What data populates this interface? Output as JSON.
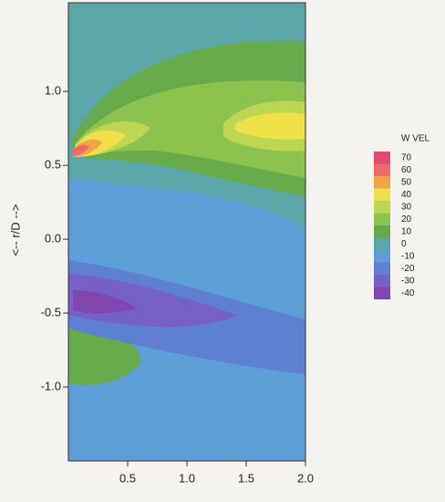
{
  "chart_data": {
    "type": "contour",
    "ylabel": "<-- r/D -->",
    "xlim": [
      0,
      2
    ],
    "ylim": [
      -1.5,
      1.6
    ],
    "xticks": [
      0.5,
      {
        "value": 1,
        "label": "1.0"
      },
      1.5,
      {
        "value": 2,
        "label": "2.0"
      }
    ],
    "yticks": [
      {
        "value": 1,
        "label": "1.0"
      },
      0.5,
      {
        "value": 0,
        "label": "0.0"
      },
      -0.5,
      {
        "value": -1,
        "label": "-1.0"
      }
    ],
    "colorbar_title": "W VEL",
    "levels": [
      70,
      60,
      50,
      40,
      30,
      20,
      10,
      0,
      -10,
      -20,
      -30,
      -40
    ],
    "colors": [
      "#e24a6e",
      "#ec6a6a",
      "#f2a548",
      "#f0e04a",
      "#bcd652",
      "#8cc24e",
      "#66aa4c",
      "#5aa6a8",
      "#5e9ed8",
      "#5f7fd0",
      "#7662c6",
      "#8046b0"
    ]
  }
}
